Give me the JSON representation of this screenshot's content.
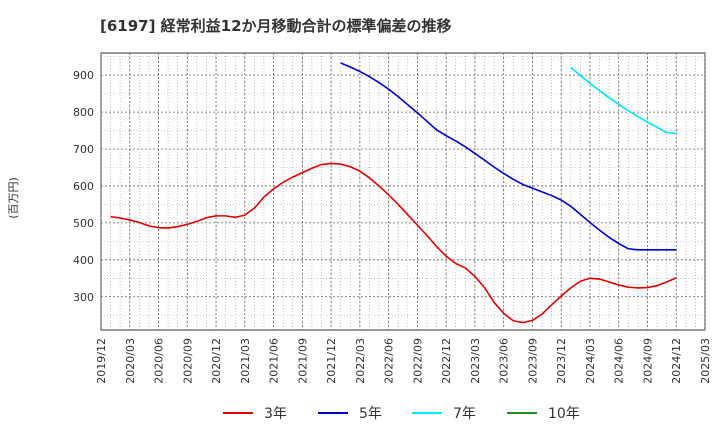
{
  "chart_data": {
    "type": "line",
    "title": "[6197]  経常利益12か月移動合計の標準偏差の推移",
    "ylabel": "(百万円)",
    "xlabel": "",
    "ylim": [
      210,
      960
    ],
    "yticks": [
      300,
      400,
      500,
      600,
      700,
      800,
      900
    ],
    "x_tick_labels": [
      "2019/12",
      "2020/03",
      "2020/06",
      "2020/09",
      "2020/12",
      "2021/03",
      "2021/06",
      "2021/09",
      "2021/12",
      "2022/03",
      "2022/06",
      "2022/09",
      "2022/12",
      "2023/03",
      "2023/06",
      "2023/09",
      "2023/12",
      "2024/03",
      "2024/06",
      "2024/09",
      "2024/12",
      "2025/03"
    ],
    "grid": true,
    "legend_position": "bottom",
    "series": [
      {
        "name": "3年",
        "color": "#dd0000",
        "x": [
          "2020/01",
          "2020/02",
          "2020/03",
          "2020/04",
          "2020/05",
          "2020/06",
          "2020/07",
          "2020/08",
          "2020/09",
          "2020/10",
          "2020/11",
          "2020/12",
          "2021/01",
          "2021/02",
          "2021/03",
          "2021/04",
          "2021/05",
          "2021/06",
          "2021/07",
          "2021/08",
          "2021/09",
          "2021/10",
          "2021/11",
          "2021/12",
          "2022/01",
          "2022/02",
          "2022/03",
          "2022/04",
          "2022/05",
          "2022/06",
          "2022/07",
          "2022/08",
          "2022/09",
          "2022/10",
          "2022/11",
          "2022/12",
          "2023/01",
          "2023/02",
          "2023/03",
          "2023/04",
          "2023/05",
          "2023/06",
          "2023/07",
          "2023/08",
          "2023/09",
          "2023/10",
          "2023/11",
          "2023/12",
          "2024/01",
          "2024/02",
          "2024/03",
          "2024/04",
          "2024/05",
          "2024/06",
          "2024/07",
          "2024/08",
          "2024/09",
          "2024/10",
          "2024/11",
          "2024/12"
        ],
        "values": [
          517,
          513,
          508,
          501,
          492,
          487,
          486,
          490,
          496,
          504,
          514,
          519,
          519,
          515,
          521,
          540,
          570,
          592,
          610,
          624,
          636,
          648,
          658,
          661,
          659,
          652,
          640,
          622,
          600,
          576,
          550,
          522,
          494,
          466,
          436,
          410,
          390,
          378,
          355,
          325,
          285,
          255,
          235,
          230,
          236,
          253,
          278,
          302,
          324,
          342,
          350,
          348,
          340,
          332,
          326,
          324,
          325,
          330,
          340,
          351
        ]
      },
      {
        "name": "5年",
        "color": "#0000cc",
        "x": [
          "2022/01",
          "2022/02",
          "2022/03",
          "2022/04",
          "2022/05",
          "2022/06",
          "2022/07",
          "2022/08",
          "2022/09",
          "2022/10",
          "2022/11",
          "2022/12",
          "2023/01",
          "2023/02",
          "2023/03",
          "2023/04",
          "2023/05",
          "2023/06",
          "2023/07",
          "2023/08",
          "2023/09",
          "2023/10",
          "2023/11",
          "2023/12",
          "2024/01",
          "2024/02",
          "2024/03",
          "2024/04",
          "2024/05",
          "2024/06",
          "2024/07",
          "2024/08",
          "2024/09",
          "2024/10",
          "2024/11",
          "2024/12"
        ],
        "values": [
          933,
          922,
          910,
          896,
          880,
          862,
          842,
          820,
          798,
          775,
          752,
          736,
          722,
          706,
          688,
          670,
          651,
          634,
          618,
          604,
          594,
          584,
          574,
          562,
          545,
          523,
          501,
          480,
          461,
          444,
          430,
          427,
          427,
          427,
          427,
          427
        ]
      },
      {
        "name": "7年",
        "color": "#00e5ee",
        "x": [
          "2024/01",
          "2024/02",
          "2024/03",
          "2024/04",
          "2024/05",
          "2024/06",
          "2024/07",
          "2024/08",
          "2024/09",
          "2024/10",
          "2024/11",
          "2024/12"
        ],
        "values": [
          921,
          899,
          878,
          858,
          839,
          821,
          804,
          788,
          773,
          759,
          745,
          742
        ]
      },
      {
        "name": "10年",
        "color": "#228b22",
        "x": [],
        "values": []
      }
    ]
  }
}
